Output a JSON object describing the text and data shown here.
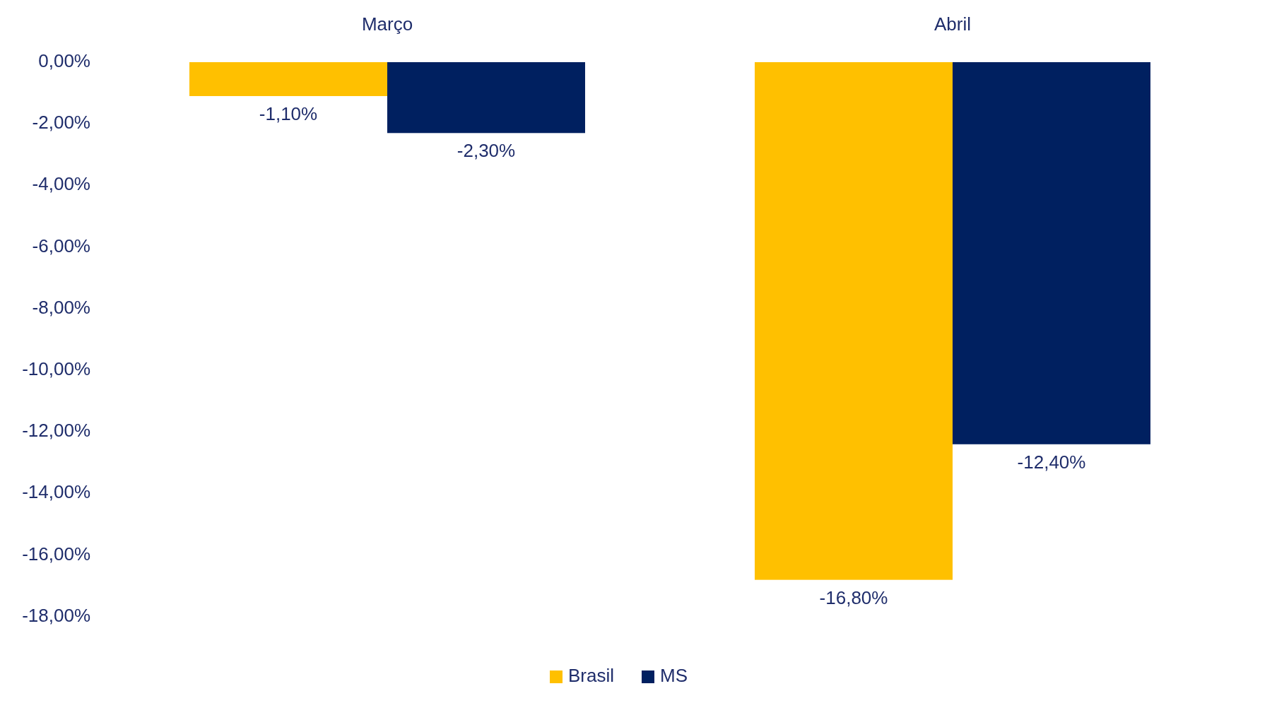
{
  "chart_data": {
    "type": "bar",
    "categories": [
      "Março",
      "Abril"
    ],
    "series": [
      {
        "name": "Brasil",
        "color": "#ffc000",
        "values": [
          -1.1,
          -16.8
        ],
        "value_labels": [
          "-1,10%",
          "-16,80%"
        ]
      },
      {
        "name": "MS",
        "color": "#002060",
        "values": [
          -2.3,
          -12.4
        ],
        "value_labels": [
          "-2,30%",
          "-12,40%"
        ]
      }
    ],
    "ylim": [
      -18,
      0
    ],
    "yticks": [
      {
        "value": 0,
        "label": "0,00%"
      },
      {
        "value": -2,
        "label": "-2,00%"
      },
      {
        "value": -4,
        "label": "-4,00%"
      },
      {
        "value": -6,
        "label": "-6,00%"
      },
      {
        "value": -8,
        "label": "-8,00%"
      },
      {
        "value": -10,
        "label": "-10,00%"
      },
      {
        "value": -12,
        "label": "-12,00%"
      },
      {
        "value": -14,
        "label": "-14,00%"
      },
      {
        "value": -16,
        "label": "-16,00%"
      },
      {
        "value": -18,
        "label": "-18,00%"
      }
    ],
    "grid": false,
    "legend": "bottom"
  }
}
